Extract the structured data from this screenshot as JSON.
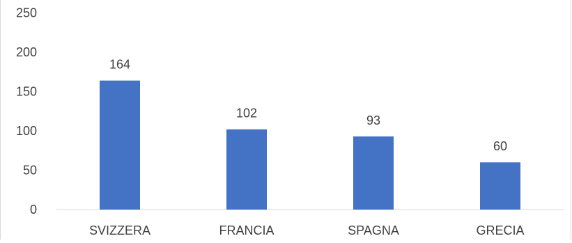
{
  "chart_data": {
    "type": "bar",
    "title": "",
    "xlabel": "",
    "ylabel": "",
    "categories": [
      "SVIZZERA",
      "FRANCIA",
      "SPAGNA",
      "GRECIA"
    ],
    "values": [
      164,
      102,
      93,
      60
    ],
    "data_labels": [
      "164",
      "102",
      "93",
      "60"
    ],
    "ylim": [
      0,
      250
    ],
    "yticks": [
      0,
      50,
      100,
      150,
      200,
      250
    ],
    "ytick_labels": [
      "0",
      "50",
      "100",
      "150",
      "200",
      "250"
    ],
    "grid": false,
    "legend": "none",
    "colors": {
      "bar": "#4472c4",
      "axis": "#d9d9d9",
      "text": "#404040"
    }
  }
}
